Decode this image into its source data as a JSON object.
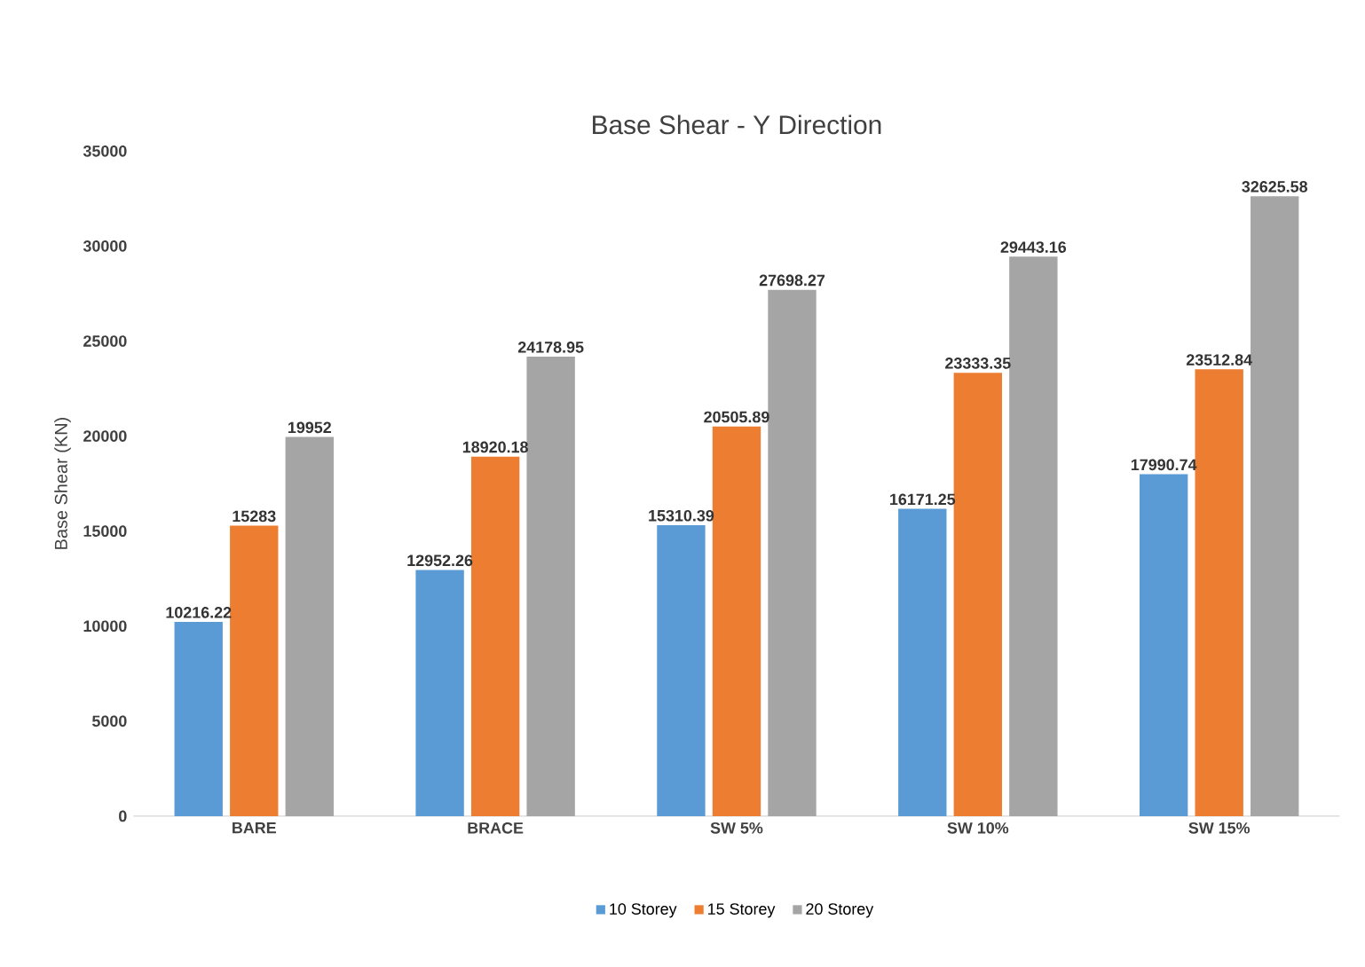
{
  "chart_data": {
    "type": "bar",
    "title": "Base Shear - Y Direction",
    "ylabel": "Base Shear (KN)",
    "categories": [
      "BARE",
      "BRACE",
      "SW 5%",
      "SW 10%",
      "SW 15%"
    ],
    "series": [
      {
        "name": "10 Storey",
        "color": "#5b9bd5",
        "values": [
          10216.22,
          12952.26,
          15310.39,
          16171.25,
          17990.74
        ]
      },
      {
        "name": "15 Storey",
        "color": "#ed7d31",
        "values": [
          15283,
          18920.18,
          20505.89,
          23333.35,
          23512.84
        ]
      },
      {
        "name": "20 Storey",
        "color": "#a5a5a5",
        "values": [
          19952,
          24178.95,
          27698.27,
          29443.16,
          32625.58
        ]
      }
    ],
    "ylim": [
      0,
      35000
    ],
    "yticks": [
      0,
      5000,
      10000,
      15000,
      20000,
      25000,
      30000,
      35000
    ],
    "data_labels": true,
    "legend": "bottom"
  }
}
